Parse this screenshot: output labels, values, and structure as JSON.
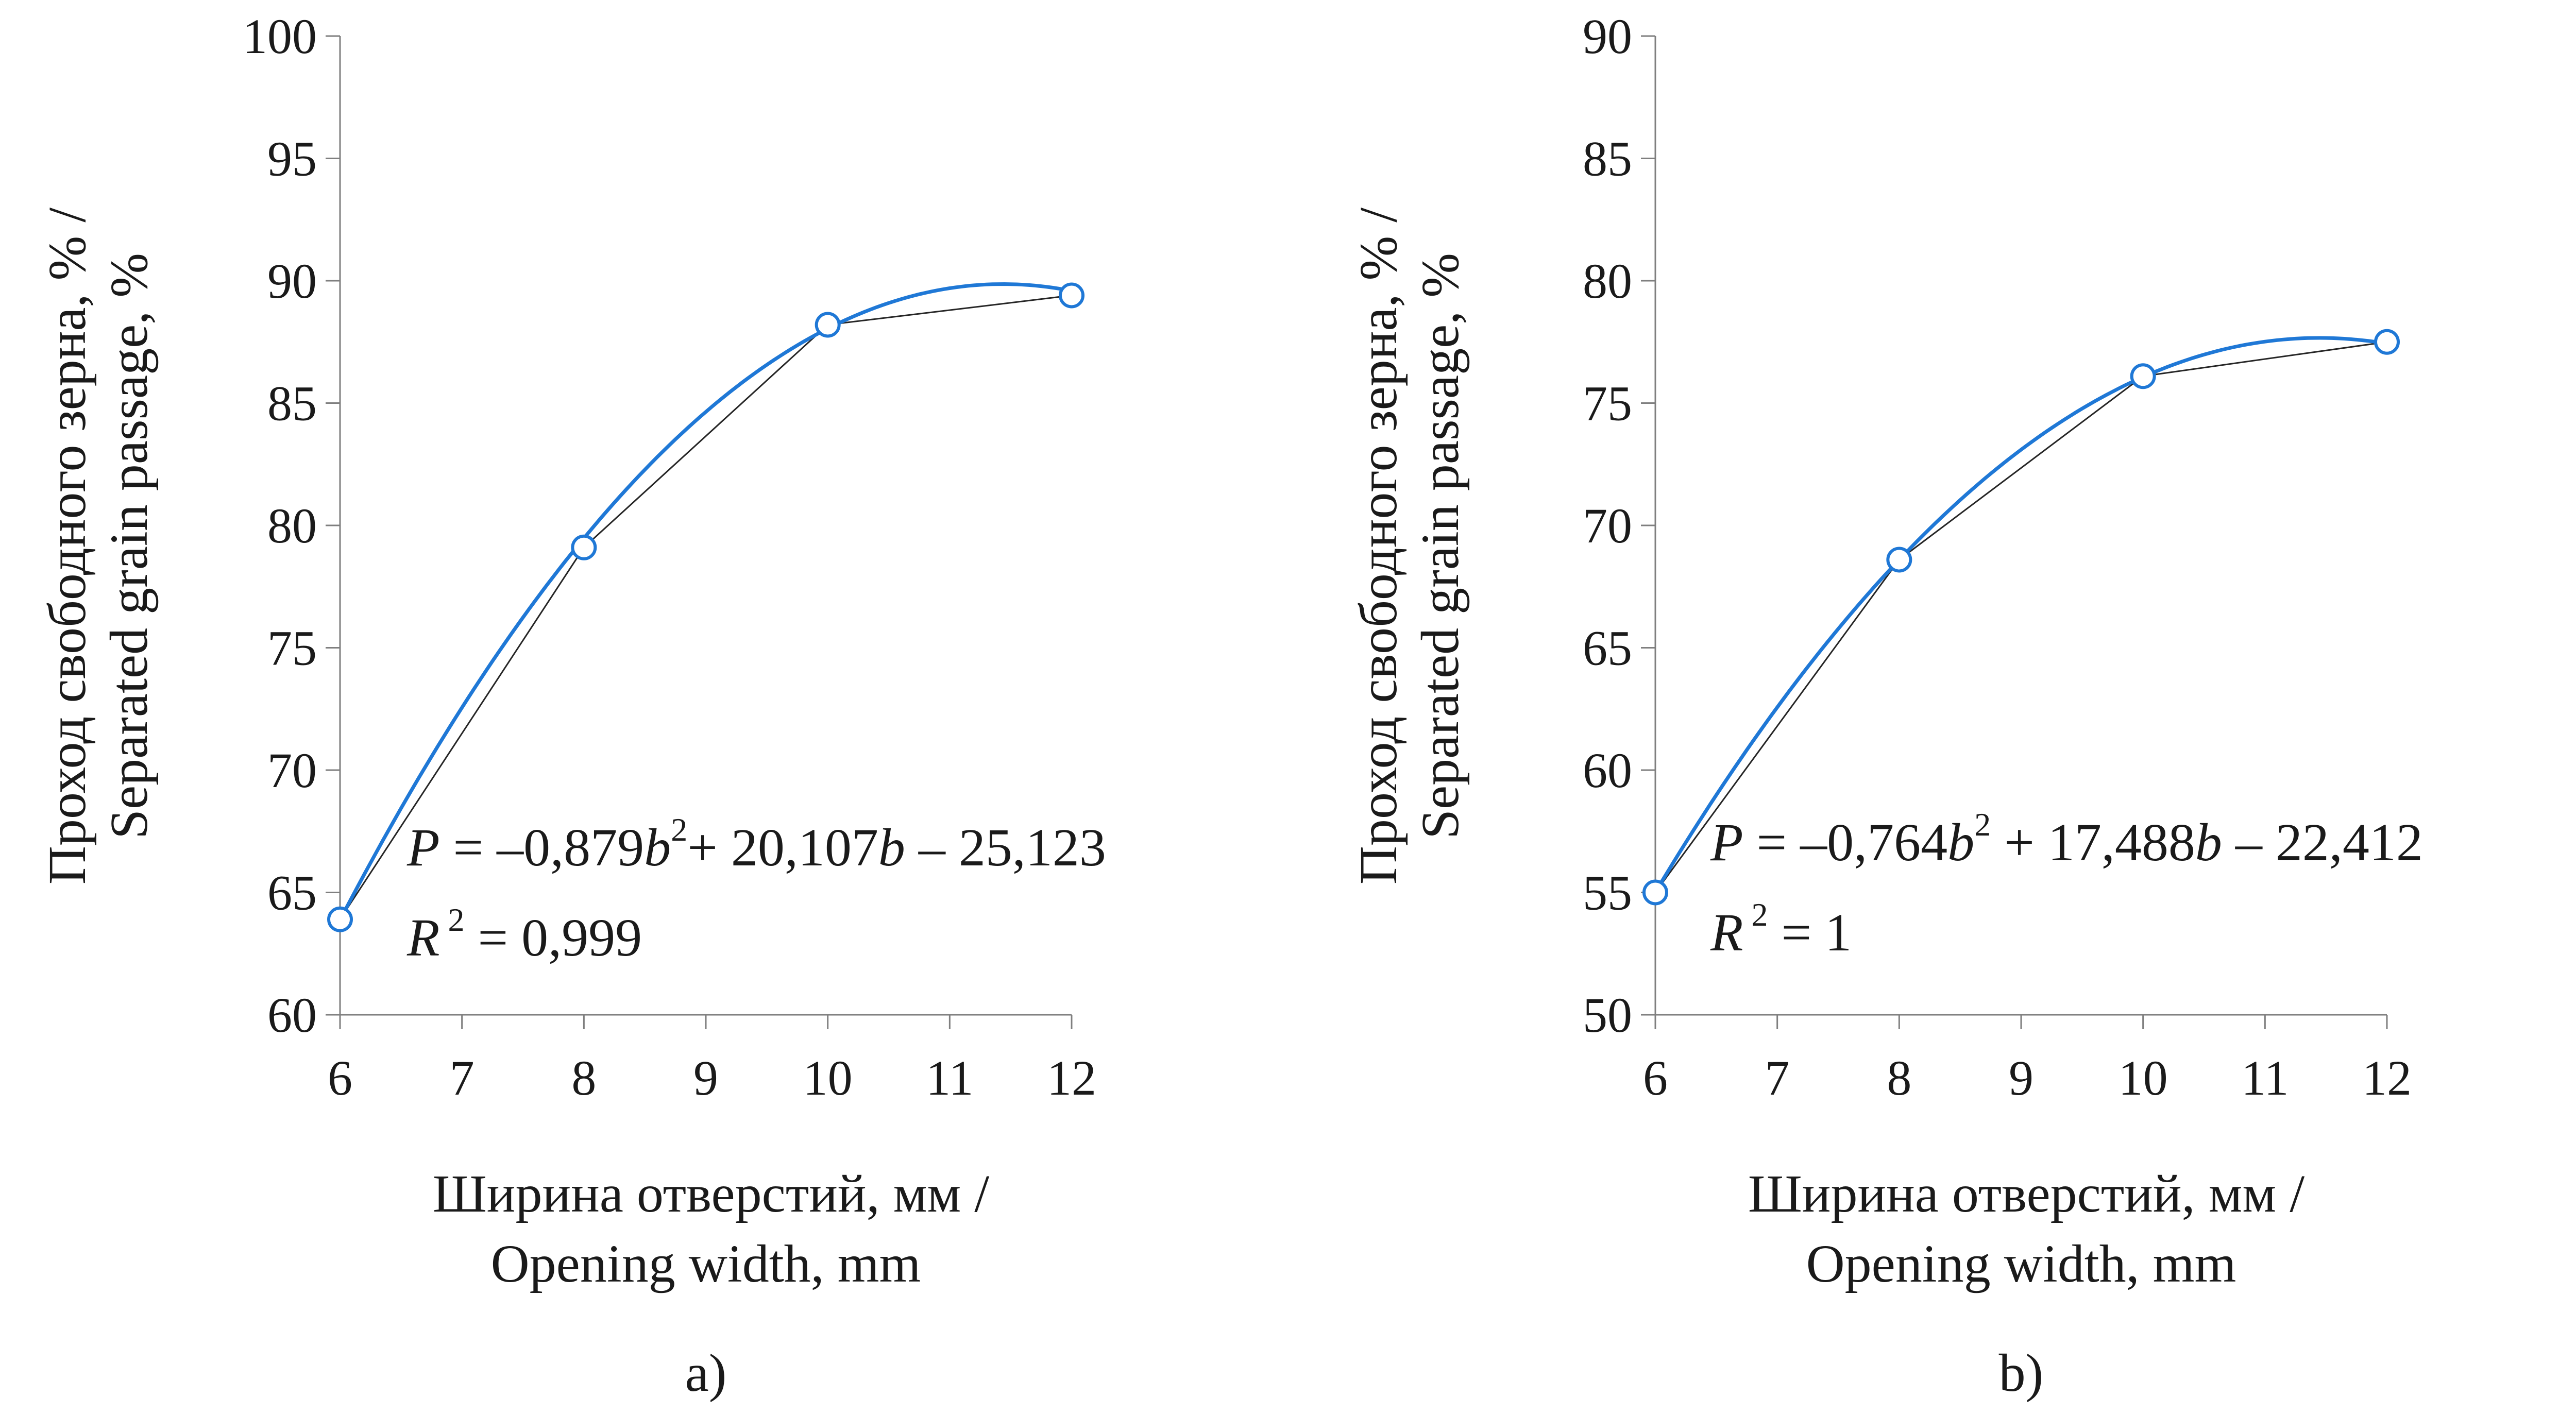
{
  "chart_data": [
    {
      "type": "scatter",
      "panel_label": "a)",
      "xlabel_line1": "Ширина отверстий, мм /",
      "xlabel_line2": "Opening width, mm",
      "ylabel_line1": "Проход свободного зерна, % /",
      "ylabel_line2": "Separated grain passage, %",
      "x_ticks": [
        6,
        7,
        8,
        9,
        10,
        11,
        12
      ],
      "y_ticks": [
        60,
        65,
        70,
        75,
        80,
        85,
        90,
        95,
        100
      ],
      "xlim": [
        6,
        12
      ],
      "ylim": [
        60,
        100
      ],
      "x": [
        6,
        8,
        10,
        12
      ],
      "y": [
        63.9,
        79.1,
        88.2,
        89.4
      ],
      "trendline": {
        "type": "polynomial",
        "order": 2,
        "a": -0.879,
        "b": 20.107,
        "c": -25.123
      },
      "equation": {
        "p": "P",
        "part1": " = –0,879",
        "b1": "b",
        "sup1": "2",
        "part2": "+ 20,107",
        "b2": "b",
        "part3": " – 25,123",
        "r": "R",
        "r_sup": "2",
        "r_value": " = 0,999"
      },
      "colors": {
        "trend": "#1f78d6",
        "line": "#262626"
      }
    },
    {
      "type": "scatter",
      "panel_label": "b)",
      "xlabel_line1": "Ширина отверстий, мм /",
      "xlabel_line2": "Opening width, mm",
      "ylabel_line1": "Проход свободного зерна, % /",
      "ylabel_line2": "Separated grain passage, %",
      "x_ticks": [
        6,
        7,
        8,
        9,
        10,
        11,
        12
      ],
      "y_ticks": [
        50,
        55,
        60,
        65,
        70,
        75,
        80,
        85,
        90
      ],
      "xlim": [
        6,
        12
      ],
      "ylim": [
        50,
        90
      ],
      "x": [
        6,
        8,
        10,
        12
      ],
      "y": [
        55.0,
        68.6,
        76.1,
        77.5
      ],
      "trendline": {
        "type": "polynomial",
        "order": 2,
        "a": -0.764,
        "b": 17.488,
        "c": -22.412
      },
      "equation": {
        "p": "P",
        "part1": " = –0,764",
        "b1": "b",
        "sup1": "2",
        "part2": " + 17,488",
        "b2": "b",
        "part3": " – 22,412",
        "r": "R",
        "r_sup": "2",
        "r_value": " = 1"
      },
      "colors": {
        "trend": "#1f78d6",
        "line": "#262626"
      }
    }
  ]
}
